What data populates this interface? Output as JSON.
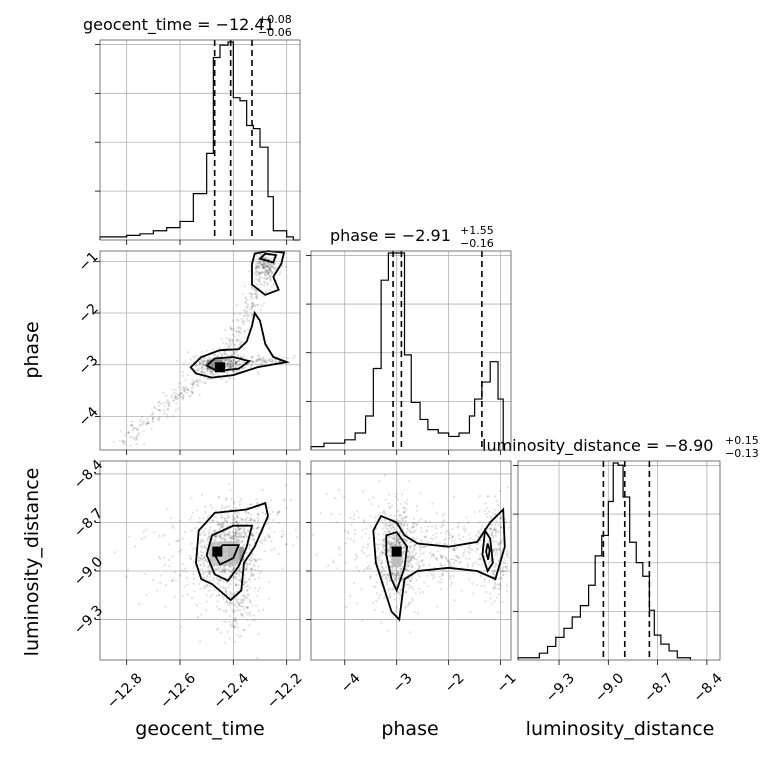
{
  "chart_data": {
    "type": "corner",
    "parameters": [
      "geocent_time",
      "phase",
      "luminosity_distance"
    ],
    "titles": [
      {
        "text": "geocent_time = −12.41",
        "plus": "+0.08",
        "minus": "−0.06"
      },
      {
        "text": "phase = −2.91",
        "plus": "+1.55",
        "minus": "−0.16"
      },
      {
        "text": "luminosity_distance = −8.90",
        "plus": "+0.15",
        "minus": "−0.13"
      }
    ],
    "axis_labels": {
      "x": [
        "geocent_time",
        "phase",
        "luminosity_distance"
      ],
      "y": [
        "phase",
        "luminosity_distance"
      ]
    },
    "ranges": {
      "geocent_time": [
        -12.9,
        -12.15
      ],
      "phase": [
        -4.65,
        -0.8
      ],
      "luminosity_distance": [
        -9.55,
        -8.32
      ]
    },
    "ticks": {
      "geocent_time": {
        "values": [
          -12.8,
          -12.6,
          -12.4,
          -12.2
        ],
        "labels": [
          "−12.8",
          "−12.6",
          "−12.4",
          "−12.2"
        ]
      },
      "phase": {
        "values": [
          -4,
          -3,
          -2,
          -1
        ],
        "labels": [
          "−4",
          "−3",
          "−2",
          "−1"
        ]
      },
      "luminosity_distance": {
        "values": [
          -9.3,
          -9.0,
          -8.7,
          -8.4
        ],
        "labels": [
          "−9.3",
          "−9.0",
          "−8.7",
          "−8.4"
        ]
      }
    },
    "quantiles": {
      "geocent_time": [
        -12.47,
        -12.41,
        -12.33
      ],
      "phase": [
        -3.07,
        -2.91,
        -1.36
      ],
      "luminosity_distance": [
        -9.03,
        -8.9,
        -8.75
      ]
    },
    "histograms": {
      "geocent_time": {
        "edges": [
          -12.9,
          -12.8,
          -12.75,
          -12.7,
          -12.65,
          -12.6,
          -12.55,
          -12.5,
          -12.475,
          -12.45,
          -12.42,
          -12.4,
          -12.375,
          -12.35,
          -12.325,
          -12.3,
          -12.27,
          -12.25,
          -12.2,
          -12.175,
          -12.15
        ],
        "counts": [
          1,
          1.5,
          2,
          3,
          4,
          6,
          15,
          28,
          59,
          63,
          64,
          46,
          45,
          37,
          36,
          30,
          14,
          3,
          1,
          0
        ]
      },
      "phase": {
        "edges": [
          -4.65,
          -4.4,
          -4.0,
          -3.8,
          -3.6,
          -3.45,
          -3.3,
          -3.16,
          -3.02,
          -2.85,
          -2.72,
          -2.55,
          -2.4,
          -2.2,
          -2.0,
          -1.8,
          -1.6,
          -1.5,
          -1.36,
          -1.2,
          -1.05,
          -0.95
        ],
        "counts": [
          1,
          2,
          3,
          5,
          10,
          24,
          50,
          58,
          58,
          28,
          14,
          9,
          6,
          5,
          4,
          5,
          10,
          15,
          20,
          26,
          15
        ]
      },
      "luminosity_distance": {
        "edges": [
          -9.55,
          -9.42,
          -9.37,
          -9.32,
          -9.27,
          -9.22,
          -9.17,
          -9.12,
          -9.08,
          -9.04,
          -9.0,
          -8.97,
          -8.94,
          -8.91,
          -8.87,
          -8.83,
          -8.79,
          -8.75,
          -8.72,
          -8.68,
          -8.63,
          -8.58,
          -8.5
        ],
        "counts": [
          1,
          3,
          6,
          10,
          14,
          19,
          24,
          33,
          46,
          55,
          70,
          87,
          86,
          72,
          52,
          43,
          37,
          22,
          11,
          7,
          4,
          1
        ]
      }
    },
    "density_peaks": [
      {
        "x": "geocent_time",
        "y": "phase",
        "at": [
          -12.45,
          -3.05
        ]
      },
      {
        "x": "geocent_time",
        "y": "luminosity_distance",
        "at": [
          -12.46,
          -8.88
        ]
      },
      {
        "x": "phase",
        "y": "luminosity_distance",
        "at": [
          -3.0,
          -8.88
        ]
      }
    ],
    "grid": true
  }
}
